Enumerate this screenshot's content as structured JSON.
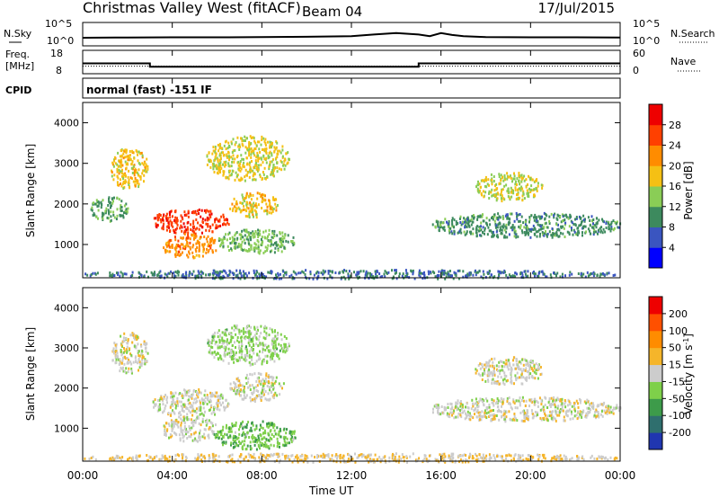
{
  "header": {
    "title": "Christmas Valley West (fitACF)",
    "beam": "Beam 04",
    "date": "17/Jul/2015"
  },
  "noise_panel": {
    "left_label": "N.Sky",
    "right_label": "N.Search",
    "ticks": [
      "10^5",
      "10^0"
    ]
  },
  "freq_panel": {
    "left_label_1": "Freq.",
    "left_label_2": "[MHz]",
    "left_ticks": [
      "18",
      "8"
    ],
    "right_label": "Nave",
    "right_ticks": [
      "60",
      "0"
    ]
  },
  "cpid": {
    "label": "CPID",
    "text": "normal (fast) -151 IF"
  },
  "x_axis": {
    "label": "Time UT",
    "ticks": [
      "00:00",
      "04:00",
      "08:00",
      "12:00",
      "16:00",
      "20:00",
      "00:00"
    ]
  },
  "power_colorbar": {
    "label": "Power [dB]",
    "ticks": [
      "28",
      "24",
      "20",
      "16",
      "12",
      "8",
      "4"
    ],
    "colors": [
      "#0000ff",
      "#3a55c0",
      "#3d8a5e",
      "#8acd56",
      "#f5c014",
      "#ff8c00",
      "#ff4000",
      "#ee0000"
    ]
  },
  "velocity_colorbar": {
    "label": "Velocity [m s",
    "label_sup": "-1",
    "label_end": "]",
    "ticks": [
      "200",
      "100",
      "50",
      "15",
      "-15",
      "-50",
      "-100",
      "-200"
    ],
    "colors": [
      "#2036b0",
      "#2f6f6e",
      "#3d9b4a",
      "#7ed04a",
      "#cccccc",
      "#f5b52a",
      "#ff8c00",
      "#ff5000",
      "#ee0000"
    ]
  },
  "chart_data": [
    {
      "type": "line",
      "panel": "noise",
      "ylabel": "N.Sky",
      "yscale": "log",
      "ylim": [
        1,
        100000
      ],
      "x": [
        0,
        2,
        4,
        6,
        8,
        10,
        12,
        13,
        14,
        15,
        15.5,
        16,
        16.5,
        17,
        18,
        20,
        22,
        24
      ],
      "series": [
        {
          "values": [
            40,
            45,
            50,
            50,
            55,
            70,
            100,
            250,
            600,
            250,
            100,
            600,
            200,
            100,
            60,
            50,
            50,
            45
          ]
        }
      ]
    },
    {
      "type": "line",
      "panel": "frequency",
      "ylabel": "Freq. [MHz]",
      "ylim": [
        8,
        18
      ],
      "x": [
        0,
        3.0,
        3.0,
        15.0,
        15.0,
        24
      ],
      "series": [
        {
          "values": [
            12.3,
            12.3,
            10.6,
            10.6,
            12.3,
            12.3
          ]
        },
        {
          "values": [
            10.9,
            10.9,
            10.9,
            10.9,
            10.9,
            10.9
          ]
        }
      ]
    },
    {
      "type": "heatmap",
      "panel": "power",
      "xlabel": "Time UT",
      "ylabel": "Slant Range [km]",
      "xlim": [
        0,
        24
      ],
      "ylim": [
        180,
        4500
      ],
      "zlabel": "Power [dB]",
      "zlim": [
        0,
        32
      ],
      "regions": [
        {
          "t0": 1.2,
          "t1": 2.9,
          "r0": 2400,
          "r1": 3400,
          "z": 18
        },
        {
          "t0": 3.1,
          "t1": 6.5,
          "r0": 1300,
          "r1": 1900,
          "z": 27
        },
        {
          "t0": 6.5,
          "t1": 8.7,
          "r0": 1700,
          "r1": 2300,
          "z": 18
        },
        {
          "t0": 3.5,
          "t1": 6.0,
          "r0": 700,
          "r1": 1300,
          "z": 22
        },
        {
          "t0": 5.5,
          "t1": 9.2,
          "r0": 2600,
          "r1": 3700,
          "z": 17
        },
        {
          "t0": 6.0,
          "t1": 9.5,
          "r0": 800,
          "r1": 1400,
          "z": 13
        },
        {
          "t0": 0.3,
          "t1": 2.0,
          "r0": 1600,
          "r1": 2200,
          "z": 11
        },
        {
          "t0": 15.5,
          "t1": 24.0,
          "r0": 1200,
          "r1": 1800,
          "z": 10
        },
        {
          "t0": 17.5,
          "t1": 20.5,
          "r0": 2100,
          "r1": 2800,
          "z": 16
        },
        {
          "t0": 0.0,
          "t1": 24.0,
          "r0": 180,
          "r1": 400,
          "z": 8
        }
      ]
    },
    {
      "type": "heatmap",
      "panel": "velocity",
      "xlabel": "Time UT",
      "ylabel": "Slant Range [km]",
      "xlim": [
        0,
        24
      ],
      "ylim": [
        180,
        4500
      ],
      "zlabel": "Velocity [m s-1]",
      "zlim": [
        -250,
        250
      ],
      "regions": [
        {
          "t0": 1.2,
          "t1": 2.9,
          "r0": 2400,
          "r1": 3400,
          "z": 0
        },
        {
          "t0": 3.1,
          "t1": 6.5,
          "r0": 1300,
          "r1": 2000,
          "z": 0
        },
        {
          "t0": 6.5,
          "t1": 9.0,
          "r0": 1700,
          "r1": 2400,
          "z": 0
        },
        {
          "t0": 5.5,
          "t1": 9.2,
          "r0": 2600,
          "r1": 3600,
          "z": -40
        },
        {
          "t0": 3.5,
          "t1": 6.0,
          "r0": 700,
          "r1": 1300,
          "z": 0
        },
        {
          "t0": 5.8,
          "t1": 9.5,
          "r0": 500,
          "r1": 1200,
          "z": -70
        },
        {
          "t0": 15.5,
          "t1": 24.0,
          "r0": 1200,
          "r1": 1800,
          "z": 0
        },
        {
          "t0": 17.5,
          "t1": 20.5,
          "r0": 2100,
          "r1": 2800,
          "z": 0
        },
        {
          "t0": 0.0,
          "t1": 24.0,
          "r0": 180,
          "r1": 400,
          "z": 30
        }
      ]
    }
  ]
}
